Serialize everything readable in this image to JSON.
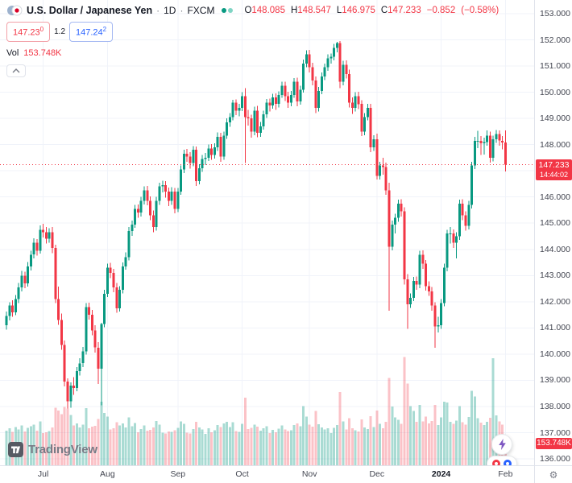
{
  "header": {
    "symbol_title": "U.S. Dollar / Japanese Yen",
    "separator": "·",
    "timeframe": "1D",
    "exchange": "FXCM",
    "ohlc": {
      "o_label": "O",
      "o": "148.085",
      "h_label": "H",
      "h": "148.547",
      "l_label": "L",
      "l": "146.975",
      "c_label": "C",
      "c": "147.233",
      "change": "−0.852",
      "change_pct": "(−0.58%)"
    }
  },
  "trade_panel": {
    "sell_price": "147.23",
    "sell_sup": "0",
    "spread": "1.2",
    "buy_price": "147.24",
    "buy_sup": "2"
  },
  "volume_row": {
    "label": "Vol",
    "value": "153.748K"
  },
  "last_price": {
    "value": "147.233",
    "countdown": "14:44:02",
    "numeric": 147.233
  },
  "volume_axis_label": {
    "value": "153.748K"
  },
  "logo": {
    "text": "TradingView"
  },
  "icons": {
    "gear": "⚙"
  },
  "colors": {
    "up": "#089981",
    "down": "#f23645",
    "vol_up": "rgba(8,153,129,0.35)",
    "vol_down": "rgba(242,54,69,0.30)",
    "grid": "#f0f3fa",
    "accent_buy": "#2962ff",
    "bolt": "#7e57c2"
  },
  "chart_data": {
    "type": "candlestick",
    "title": "U.S. Dollar / Japanese Yen · 1D · FXCM",
    "price_axis": {
      "min": 136,
      "max": 153,
      "step": 1,
      "decimals": 3
    },
    "volume_axis": {
      "max": 800,
      "unit": "K"
    },
    "grid": true,
    "months": [
      {
        "label": "Jul",
        "index": 12
      },
      {
        "label": "Aug",
        "index": 33
      },
      {
        "label": "Sep",
        "index": 56
      },
      {
        "label": "Oct",
        "index": 77
      },
      {
        "label": "Nov",
        "index": 99
      },
      {
        "label": "Dec",
        "index": 121
      },
      {
        "label": "2024",
        "index": 142,
        "year": true
      },
      {
        "label": "Feb",
        "index": 163
      }
    ],
    "candles": [
      [
        141.1,
        141.62,
        140.93,
        141.45,
        245
      ],
      [
        141.45,
        141.98,
        141.28,
        141.85,
        262
      ],
      [
        141.85,
        142.05,
        141.42,
        141.6,
        238
      ],
      [
        141.6,
        142.26,
        141.48,
        142.1,
        271
      ],
      [
        142.1,
        142.72,
        141.95,
        142.55,
        255
      ],
      [
        142.55,
        143.18,
        142.4,
        143.0,
        284
      ],
      [
        143.0,
        143.15,
        142.52,
        142.7,
        241
      ],
      [
        142.7,
        143.52,
        142.58,
        143.35,
        266
      ],
      [
        143.35,
        143.95,
        143.2,
        143.8,
        278
      ],
      [
        143.8,
        144.42,
        143.66,
        144.25,
        290
      ],
      [
        144.25,
        144.4,
        143.76,
        143.95,
        247
      ],
      [
        143.95,
        144.91,
        143.84,
        144.75,
        312
      ],
      [
        144.75,
        144.98,
        144.46,
        144.65,
        228
      ],
      [
        144.65,
        144.86,
        144.22,
        144.4,
        235
      ],
      [
        144.4,
        144.8,
        144.25,
        144.65,
        242
      ],
      [
        144.65,
        144.85,
        143.86,
        144.05,
        268
      ],
      [
        144.05,
        144.18,
        141.95,
        142.1,
        410
      ],
      [
        142.1,
        142.58,
        141.12,
        141.3,
        388
      ],
      [
        141.3,
        141.55,
        140.16,
        140.35,
        362
      ],
      [
        140.35,
        140.52,
        138.76,
        138.95,
        415
      ],
      [
        138.95,
        139.08,
        137.92,
        138.2,
        402
      ],
      [
        138.2,
        138.92,
        137.95,
        138.8,
        356
      ],
      [
        138.8,
        139.12,
        138.45,
        138.7,
        284
      ],
      [
        138.7,
        139.5,
        138.58,
        139.35,
        296
      ],
      [
        139.35,
        139.85,
        139.18,
        139.65,
        270
      ],
      [
        139.65,
        140.28,
        139.5,
        140.1,
        288
      ],
      [
        140.1,
        141.95,
        139.98,
        141.8,
        405
      ],
      [
        141.8,
        141.96,
        141.32,
        141.5,
        262
      ],
      [
        141.5,
        141.68,
        140.72,
        140.9,
        275
      ],
      [
        140.9,
        141.1,
        140.06,
        140.25,
        281
      ],
      [
        140.25,
        140.45,
        138.86,
        139.45,
        330
      ],
      [
        139.45,
        141.2,
        138.05,
        141.15,
        452
      ],
      [
        141.15,
        142.46,
        141.02,
        142.3,
        372
      ],
      [
        142.3,
        143.45,
        142.18,
        143.3,
        345
      ],
      [
        143.3,
        143.48,
        142.9,
        143.1,
        255
      ],
      [
        143.1,
        143.26,
        142.36,
        142.55,
        262
      ],
      [
        142.55,
        142.72,
        141.58,
        141.75,
        305
      ],
      [
        141.75,
        142.6,
        141.62,
        142.45,
        282
      ],
      [
        142.45,
        143.5,
        142.32,
        143.35,
        296
      ],
      [
        143.35,
        143.88,
        143.22,
        143.7,
        268
      ],
      [
        143.7,
        144.85,
        143.58,
        144.7,
        340
      ],
      [
        144.7,
        145.1,
        144.52,
        144.95,
        276
      ],
      [
        144.95,
        145.7,
        144.82,
        145.55,
        301
      ],
      [
        145.55,
        145.72,
        145.2,
        145.4,
        235
      ],
      [
        145.4,
        146.0,
        145.26,
        145.85,
        258
      ],
      [
        145.85,
        146.4,
        145.72,
        146.25,
        284
      ],
      [
        146.25,
        146.42,
        145.68,
        145.85,
        246
      ],
      [
        145.85,
        146.02,
        145.12,
        145.3,
        252
      ],
      [
        145.3,
        145.48,
        144.66,
        144.85,
        270
      ],
      [
        144.85,
        146.0,
        144.72,
        145.85,
        315
      ],
      [
        145.85,
        146.55,
        145.7,
        146.4,
        290
      ],
      [
        146.4,
        146.62,
        146.18,
        146.45,
        232
      ],
      [
        146.45,
        146.6,
        145.98,
        146.2,
        225
      ],
      [
        146.2,
        146.36,
        145.66,
        145.85,
        240
      ],
      [
        145.85,
        146.38,
        145.7,
        146.2,
        236
      ],
      [
        146.2,
        146.34,
        145.38,
        145.55,
        248
      ],
      [
        145.55,
        146.35,
        145.42,
        146.2,
        266
      ],
      [
        146.2,
        147.2,
        146.08,
        147.05,
        312
      ],
      [
        147.05,
        147.8,
        146.92,
        147.65,
        295
      ],
      [
        147.65,
        147.84,
        147.35,
        147.55,
        232
      ],
      [
        147.55,
        147.72,
        147.08,
        147.3,
        226
      ],
      [
        147.3,
        147.95,
        147.18,
        147.8,
        258
      ],
      [
        147.8,
        147.92,
        146.42,
        146.6,
        310
      ],
      [
        146.6,
        147.25,
        146.48,
        147.1,
        268
      ],
      [
        147.1,
        147.6,
        146.96,
        147.45,
        255
      ],
      [
        147.45,
        147.68,
        147.22,
        147.5,
        222
      ],
      [
        147.5,
        148.0,
        147.38,
        147.85,
        262
      ],
      [
        147.85,
        148.02,
        147.42,
        147.6,
        235
      ],
      [
        147.6,
        148.05,
        147.46,
        147.9,
        248
      ],
      [
        147.9,
        148.46,
        147.76,
        148.3,
        285
      ],
      [
        148.3,
        148.45,
        147.35,
        147.55,
        272
      ],
      [
        147.55,
        148.5,
        147.42,
        148.35,
        298
      ],
      [
        148.35,
        149.0,
        148.22,
        148.85,
        310
      ],
      [
        148.85,
        149.2,
        148.68,
        149.05,
        272
      ],
      [
        149.05,
        149.71,
        148.92,
        149.6,
        305
      ],
      [
        149.6,
        149.72,
        149.12,
        149.3,
        242
      ],
      [
        149.3,
        149.55,
        149.08,
        149.4,
        238
      ],
      [
        149.4,
        150.0,
        149.28,
        149.85,
        295
      ],
      [
        149.85,
        150.16,
        147.3,
        149.05,
        480
      ],
      [
        149.05,
        149.32,
        148.72,
        149.0,
        258
      ],
      [
        149.0,
        149.14,
        148.26,
        148.5,
        266
      ],
      [
        148.5,
        149.45,
        148.36,
        149.3,
        288
      ],
      [
        149.3,
        149.48,
        148.28,
        148.45,
        275
      ],
      [
        148.45,
        148.86,
        148.3,
        148.7,
        245
      ],
      [
        148.7,
        149.3,
        148.58,
        149.15,
        262
      ],
      [
        149.15,
        149.74,
        149.02,
        149.6,
        278
      ],
      [
        149.6,
        149.76,
        149.26,
        149.5,
        230
      ],
      [
        149.5,
        149.94,
        149.38,
        149.8,
        252
      ],
      [
        149.8,
        149.95,
        149.32,
        149.55,
        235
      ],
      [
        149.55,
        150.04,
        149.42,
        149.9,
        260
      ],
      [
        149.9,
        150.4,
        149.78,
        150.25,
        282
      ],
      [
        150.25,
        150.41,
        149.66,
        149.85,
        255
      ],
      [
        149.85,
        150.02,
        149.4,
        149.6,
        242
      ],
      [
        149.6,
        150.05,
        149.46,
        149.9,
        250
      ],
      [
        149.9,
        150.54,
        149.78,
        150.4,
        285
      ],
      [
        150.4,
        150.56,
        149.46,
        149.65,
        298
      ],
      [
        149.65,
        150.25,
        149.52,
        150.1,
        276
      ],
      [
        150.1,
        151.25,
        149.98,
        151.1,
        420
      ],
      [
        151.1,
        151.6,
        150.96,
        151.45,
        345
      ],
      [
        151.45,
        151.62,
        150.76,
        150.95,
        290
      ],
      [
        150.95,
        151.12,
        150.26,
        150.45,
        275
      ],
      [
        150.45,
        150.6,
        149.2,
        149.4,
        385
      ],
      [
        149.4,
        150.2,
        149.26,
        150.05,
        292
      ],
      [
        150.05,
        150.76,
        149.92,
        150.6,
        268
      ],
      [
        150.6,
        151.1,
        150.46,
        150.95,
        255
      ],
      [
        150.95,
        151.44,
        150.82,
        151.3,
        262
      ],
      [
        151.3,
        151.48,
        151.1,
        151.35,
        228
      ],
      [
        151.35,
        151.84,
        151.22,
        151.7,
        265
      ],
      [
        151.7,
        151.92,
        151.52,
        151.88,
        285
      ],
      [
        151.88,
        151.96,
        150.16,
        150.4,
        520
      ],
      [
        150.4,
        151.2,
        150.26,
        151.05,
        312
      ],
      [
        151.05,
        151.22,
        150.52,
        150.7,
        255
      ],
      [
        150.7,
        150.86,
        149.42,
        149.6,
        335
      ],
      [
        149.6,
        149.8,
        149.18,
        149.4,
        262
      ],
      [
        149.4,
        150.0,
        149.26,
        149.85,
        248
      ],
      [
        149.85,
        150.02,
        149.36,
        149.55,
        240
      ],
      [
        149.55,
        149.7,
        148.32,
        148.5,
        325
      ],
      [
        148.5,
        149.2,
        148.36,
        149.05,
        270
      ],
      [
        149.05,
        149.56,
        148.92,
        149.4,
        258
      ],
      [
        149.4,
        149.55,
        147.72,
        147.9,
        348
      ],
      [
        147.9,
        148.36,
        147.76,
        148.2,
        272
      ],
      [
        148.2,
        148.42,
        146.66,
        146.8,
        390
      ],
      [
        146.8,
        147.35,
        146.66,
        147.2,
        295
      ],
      [
        147.2,
        147.5,
        146.85,
        147.15,
        262
      ],
      [
        147.15,
        147.32,
        146.08,
        146.25,
        310
      ],
      [
        146.25,
        146.55,
        141.65,
        144.1,
        620
      ],
      [
        144.1,
        145.1,
        143.96,
        144.95,
        418
      ],
      [
        144.95,
        145.36,
        144.6,
        145.2,
        340
      ],
      [
        145.2,
        145.9,
        145.06,
        145.75,
        322
      ],
      [
        145.75,
        145.92,
        145.26,
        145.45,
        295
      ],
      [
        145.45,
        145.6,
        142.65,
        142.85,
        770
      ],
      [
        142.85,
        143.05,
        140.97,
        141.9,
        580
      ],
      [
        141.9,
        142.32,
        141.76,
        142.15,
        420
      ],
      [
        142.15,
        142.95,
        142.02,
        142.8,
        385
      ],
      [
        142.8,
        142.96,
        142.46,
        142.65,
        310
      ],
      [
        142.65,
        143.95,
        142.52,
        143.8,
        428
      ],
      [
        143.8,
        143.96,
        143.26,
        143.45,
        312
      ],
      [
        143.45,
        143.6,
        142.42,
        142.6,
        345
      ],
      [
        142.6,
        142.78,
        142.22,
        142.4,
        298
      ],
      [
        142.4,
        142.56,
        141.66,
        141.85,
        315
      ],
      [
        141.85,
        141.98,
        140.25,
        141.05,
        430
      ],
      [
        141.05,
        141.42,
        140.82,
        141.1,
        285
      ],
      [
        141.1,
        142.1,
        140.96,
        141.95,
        340
      ],
      [
        141.95,
        143.45,
        141.82,
        143.3,
        452
      ],
      [
        143.3,
        144.75,
        143.16,
        144.6,
        445
      ],
      [
        144.6,
        144.85,
        144.22,
        144.6,
        310
      ],
      [
        144.6,
        144.76,
        144.06,
        144.25,
        295
      ],
      [
        144.25,
        144.65,
        143.65,
        144.5,
        318
      ],
      [
        144.5,
        145.9,
        144.36,
        145.75,
        420
      ],
      [
        145.75,
        145.92,
        145.12,
        145.3,
        305
      ],
      [
        145.3,
        145.46,
        144.72,
        144.9,
        288
      ],
      [
        144.9,
        145.85,
        144.76,
        145.7,
        342
      ],
      [
        145.7,
        147.35,
        145.56,
        147.2,
        530
      ],
      [
        147.2,
        148.3,
        147.06,
        148.15,
        488
      ],
      [
        148.15,
        148.52,
        147.86,
        148.15,
        335
      ],
      [
        148.15,
        148.32,
        147.6,
        148.05,
        302
      ],
      [
        148.05,
        148.26,
        147.62,
        148.1,
        285
      ],
      [
        148.1,
        148.55,
        147.96,
        148.35,
        310
      ],
      [
        148.35,
        148.5,
        147.32,
        147.5,
        338
      ],
      [
        147.5,
        148.35,
        147.36,
        148.2,
        760
      ],
      [
        148.2,
        148.56,
        148.06,
        148.4,
        355
      ],
      [
        148.4,
        148.55,
        147.96,
        148.15,
        312
      ],
      [
        148.15,
        148.32,
        147.82,
        148.08,
        290
      ],
      [
        148.085,
        148.547,
        146.975,
        147.233,
        153.748
      ]
    ]
  }
}
